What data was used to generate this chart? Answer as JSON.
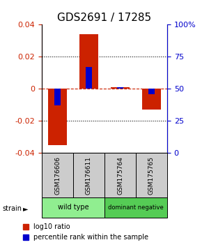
{
  "title": "GDS2691 / 17285",
  "samples": [
    "GSM176606",
    "GSM176611",
    "GSM175764",
    "GSM175765"
  ],
  "log10_ratios": [
    -0.035,
    0.034,
    0.001,
    -0.013
  ],
  "percentile_ranks": [
    37.0,
    67.0,
    51.5,
    46.0
  ],
  "ylim_left": [
    -0.04,
    0.04
  ],
  "ylim_right": [
    0,
    100
  ],
  "yticks_left": [
    -0.04,
    -0.02,
    0,
    0.02,
    0.04
  ],
  "yticks_right": [
    0,
    25,
    50,
    75,
    100
  ],
  "group_wt_color": "#90EE90",
  "group_dn_color": "#55CC55",
  "bar_color_red": "#CC2200",
  "bar_color_blue": "#0000CC",
  "bar_width": 0.6,
  "blue_bar_width": 0.18,
  "sample_box_color": "#CCCCCC",
  "bg_color": "#FFFFFF",
  "title_fontsize": 11,
  "tick_fontsize": 8,
  "legend_fontsize": 7
}
